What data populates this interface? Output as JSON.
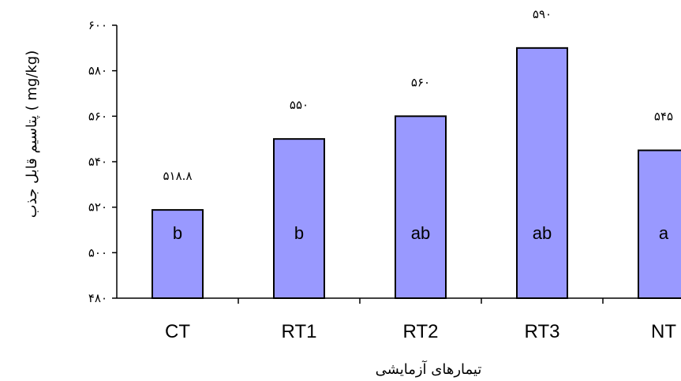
{
  "chart_data": {
    "type": "bar",
    "categories": [
      "CT",
      "RT1",
      "RT2",
      "RT3",
      "NT"
    ],
    "values": [
      518.8,
      550,
      560,
      590,
      545
    ],
    "value_labels": [
      "۵۱۸.۸",
      "۵۵۰",
      "۵۶۰",
      "۵۹۰",
      "۵۴۵"
    ],
    "group_letters": [
      "b",
      "b",
      "ab",
      "ab",
      "a"
    ],
    "ylim": [
      480,
      600
    ],
    "yticks": [
      480,
      500,
      520,
      540,
      560,
      580,
      600
    ],
    "ytick_labels": [
      "۴۸۰",
      "۵۰۰",
      "۵۲۰",
      "۵۴۰",
      "۵۶۰",
      "۵۸۰",
      "۶۰۰"
    ],
    "xlabel": "تیمارهای آزمایشی",
    "ylabel": "پتاسیم قابل جذب ( mg/kg)",
    "bar_color": "#9999ff",
    "bar_edge_color": "#000000",
    "grid": false,
    "legend": "none"
  }
}
